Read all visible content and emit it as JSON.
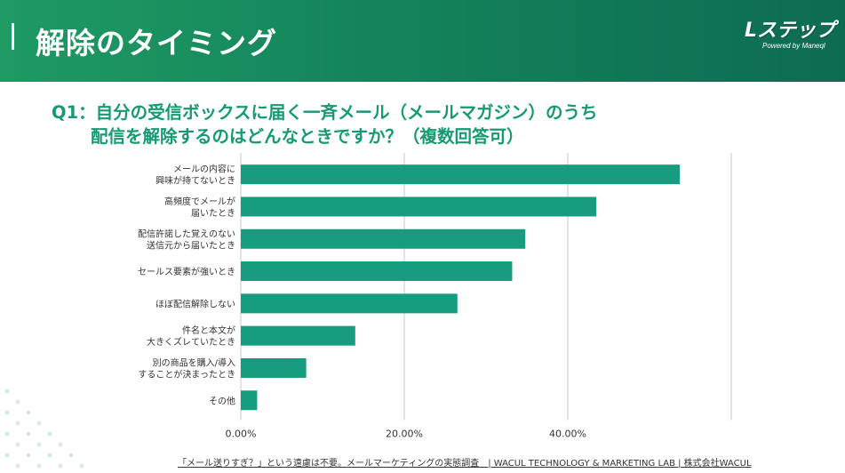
{
  "header": {
    "title": "解除のタイミング",
    "logo_text": "Lステップ",
    "logo_sub": "Powered by Maneql"
  },
  "question": {
    "line1": "Q1：自分の受信ボックスに届く一斉メール（メールマガジン）のうち",
    "line2": "配信を解除するのはどんなときですか？（複数回答可）"
  },
  "chart_data": {
    "type": "bar",
    "orientation": "horizontal",
    "categories": [
      [
        "メールの内容に",
        "興味が持てないとき"
      ],
      [
        "高頻度でメールが",
        "届いたとき"
      ],
      [
        "配信許諾した覚えのない",
        "送信元から届いたとき"
      ],
      [
        "セールス要素が強いとき"
      ],
      [
        "ほぼ配信解除しない"
      ],
      [
        "件名と本文が",
        "大きくズレていたとき"
      ],
      [
        "別の商品を購入/導入",
        "することが決まったとき"
      ],
      [
        "その他"
      ]
    ],
    "values": [
      53.7,
      43.5,
      34.8,
      33.2,
      26.5,
      14.0,
      8.0,
      2.0
    ],
    "xlim": [
      0,
      60
    ],
    "xticks": [
      0,
      20,
      40
    ],
    "xtick_labels": [
      "0.00%",
      "20.00%",
      "40.00%"
    ],
    "grid": true,
    "bar_color": "#189c7f"
  },
  "footer": {
    "text": "「メール送りすぎ？」という遠慮は不要。メールマーケティングの実態調査　| WACUL TECHNOLOGY & MARKETING LAB | 株式会社WACUL"
  }
}
